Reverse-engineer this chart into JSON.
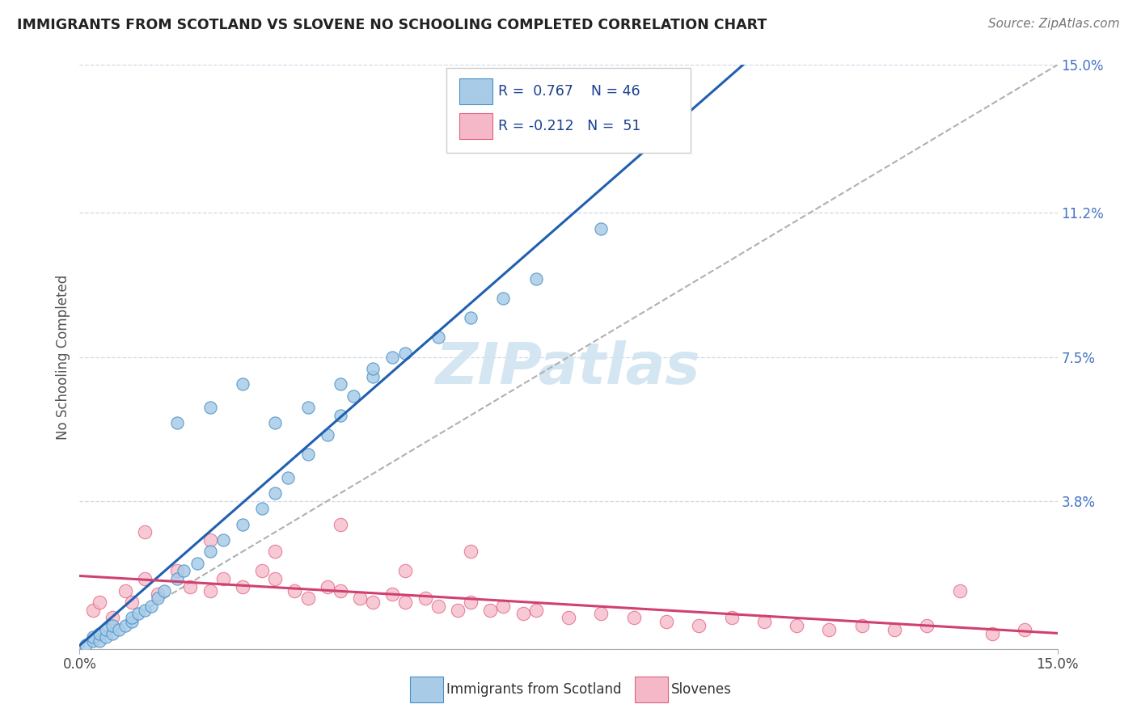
{
  "title": "IMMIGRANTS FROM SCOTLAND VS SLOVENE NO SCHOOLING COMPLETED CORRELATION CHART",
  "source": "Source: ZipAtlas.com",
  "ylabel": "No Schooling Completed",
  "xlim": [
    0.0,
    0.15
  ],
  "ylim": [
    0.0,
    0.15
  ],
  "xtick_positions": [
    0.0,
    0.15
  ],
  "xtick_labels": [
    "0.0%",
    "15.0%"
  ],
  "yticks_right": [
    0.0,
    0.038,
    0.075,
    0.112,
    0.15
  ],
  "ytick_labels_right": [
    "",
    "3.8%",
    "7.5%",
    "11.2%",
    "15.0%"
  ],
  "R_scotland": 0.767,
  "N_scotland": 46,
  "R_slovene": -0.212,
  "N_slovene": 51,
  "scotland_fill": "#a8cce8",
  "scotland_edge": "#4a90c4",
  "slovene_fill": "#f5b8c8",
  "slovene_edge": "#e06080",
  "trend_scotland_color": "#2060b0",
  "trend_slovene_color": "#d04070",
  "ref_line_color": "#b0b0b0",
  "grid_color": "#d0d8e8",
  "watermark_color": "#d0e4f0",
  "sc_x": [
    0.001,
    0.002,
    0.002,
    0.003,
    0.003,
    0.004,
    0.004,
    0.005,
    0.005,
    0.006,
    0.007,
    0.008,
    0.008,
    0.009,
    0.01,
    0.011,
    0.012,
    0.013,
    0.015,
    0.016,
    0.018,
    0.02,
    0.022,
    0.025,
    0.028,
    0.03,
    0.032,
    0.035,
    0.038,
    0.04,
    0.042,
    0.045,
    0.048,
    0.015,
    0.02,
    0.025,
    0.03,
    0.035,
    0.04,
    0.045,
    0.05,
    0.055,
    0.06,
    0.065,
    0.07,
    0.08
  ],
  "sc_y": [
    0.001,
    0.002,
    0.003,
    0.002,
    0.004,
    0.003,
    0.005,
    0.004,
    0.006,
    0.005,
    0.006,
    0.007,
    0.008,
    0.009,
    0.01,
    0.011,
    0.013,
    0.015,
    0.018,
    0.02,
    0.022,
    0.025,
    0.028,
    0.032,
    0.036,
    0.04,
    0.044,
    0.05,
    0.055,
    0.06,
    0.065,
    0.07,
    0.075,
    0.058,
    0.062,
    0.068,
    0.058,
    0.062,
    0.068,
    0.072,
    0.076,
    0.08,
    0.085,
    0.09,
    0.095,
    0.108
  ],
  "sl_x": [
    0.002,
    0.003,
    0.005,
    0.007,
    0.008,
    0.01,
    0.012,
    0.015,
    0.017,
    0.02,
    0.022,
    0.025,
    0.028,
    0.03,
    0.033,
    0.035,
    0.038,
    0.04,
    0.043,
    0.045,
    0.048,
    0.05,
    0.053,
    0.055,
    0.058,
    0.06,
    0.063,
    0.065,
    0.068,
    0.07,
    0.075,
    0.08,
    0.085,
    0.09,
    0.095,
    0.1,
    0.105,
    0.11,
    0.115,
    0.12,
    0.125,
    0.13,
    0.135,
    0.14,
    0.145,
    0.01,
    0.02,
    0.03,
    0.04,
    0.05,
    0.06
  ],
  "sl_y": [
    0.01,
    0.012,
    0.008,
    0.015,
    0.012,
    0.018,
    0.014,
    0.02,
    0.016,
    0.015,
    0.018,
    0.016,
    0.02,
    0.018,
    0.015,
    0.013,
    0.016,
    0.015,
    0.013,
    0.012,
    0.014,
    0.012,
    0.013,
    0.011,
    0.01,
    0.012,
    0.01,
    0.011,
    0.009,
    0.01,
    0.008,
    0.009,
    0.008,
    0.007,
    0.006,
    0.008,
    0.007,
    0.006,
    0.005,
    0.006,
    0.005,
    0.006,
    0.015,
    0.004,
    0.005,
    0.03,
    0.028,
    0.025,
    0.032,
    0.02,
    0.025
  ]
}
